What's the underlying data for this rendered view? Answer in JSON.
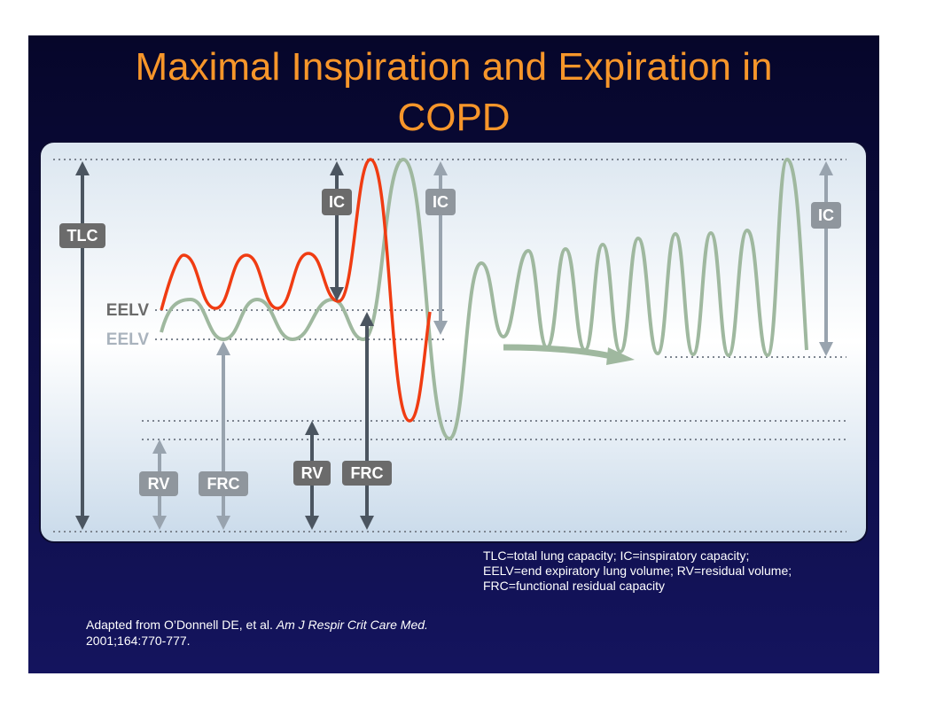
{
  "header": {
    "title_lines": [
      "Maximal Inspiration and Expiration in",
      "COPD"
    ]
  },
  "diagram": {
    "labels": {
      "tlc": "TLC",
      "ic_dark": "IC",
      "ic_light": "IC",
      "ic_right": "IC",
      "eelv_dark": "EELV",
      "eelv_light": "EELV",
      "rv_light": "RV",
      "frc_light": "FRC",
      "rv_dark": "RV",
      "frc_dark": "FRC"
    }
  },
  "footnote": {
    "lines": [
      "TLC=total lung capacity; IC=inspiratory capacity;",
      "EELV=end expiratory lung volume; RV=residual volume;",
      "FRC=functional residual capacity"
    ]
  },
  "citation": {
    "authors": "Adapted from O’Donnell DE, et al. ",
    "journal": "Am J Respir Crit Care Med.",
    "details": "2001;164:770-777."
  }
}
